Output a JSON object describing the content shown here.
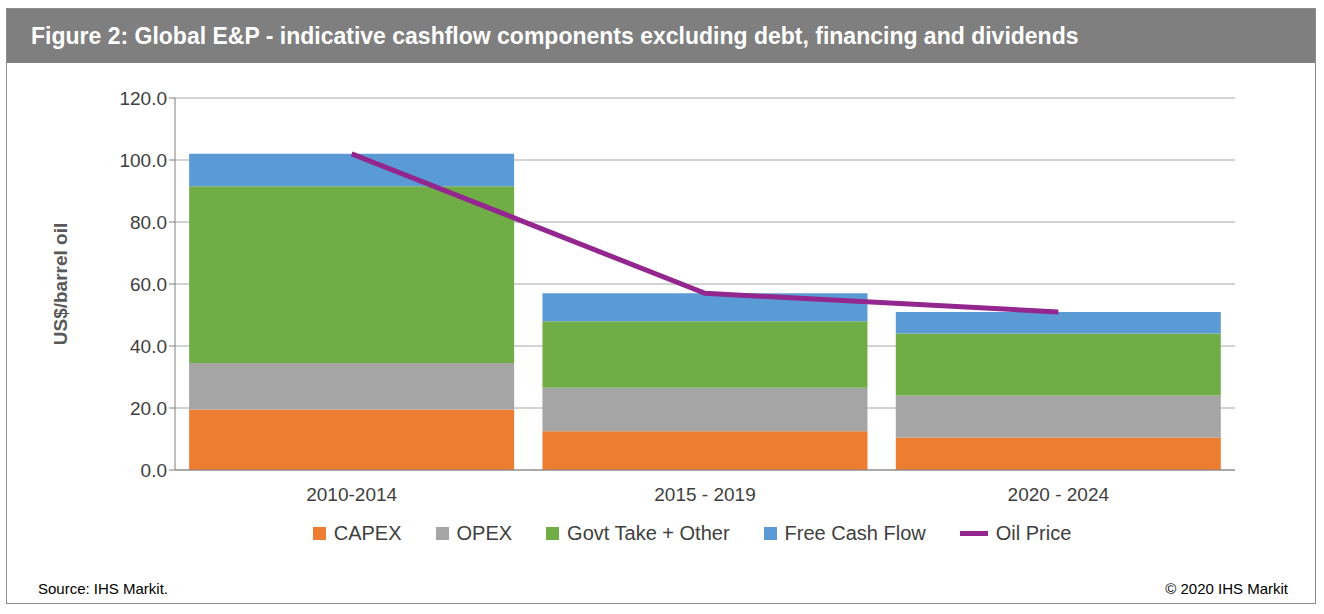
{
  "chart_data": {
    "type": "bar",
    "stacked": true,
    "title": "Figure 2: Global E&P - indicative cashflow components excluding debt, financing and dividends",
    "y_label": "US$/barrel oil",
    "source": "Source: IHS Markit.",
    "copyright": "© 2020 IHS Markit",
    "categories": [
      "2010-2014",
      "2015 - 2019",
      "2020 - 2024"
    ],
    "series": [
      {
        "name": "CAPEX",
        "color": "#ed7d31",
        "values": [
          19.5,
          12.5,
          10.5
        ]
      },
      {
        "name": "OPEX",
        "color": "#a5a5a5",
        "values": [
          15,
          14,
          13.5
        ]
      },
      {
        "name": "Govt Take + Other",
        "color": "#70ad47",
        "values": [
          57,
          21.5,
          20
        ]
      },
      {
        "name": "Free Cash Flow",
        "color": "#5b9bd5",
        "values": [
          10.5,
          9,
          7
        ]
      },
      {
        "name": "Oil Price",
        "type": "line",
        "color": "#93278f",
        "values": [
          102,
          57,
          51
        ]
      }
    ],
    "ylim": [
      0,
      120
    ],
    "yticks": [
      {
        "value": 0,
        "label": "0.0"
      },
      {
        "value": 20,
        "label": "20.0"
      },
      {
        "value": 40,
        "label": "40.0"
      },
      {
        "value": 60,
        "label": "60.0"
      },
      {
        "value": 80,
        "label": "80.0"
      },
      {
        "value": 100,
        "label": "100.0"
      },
      {
        "value": 120,
        "label": "120.0"
      }
    ],
    "grid": true,
    "legend": "bottom"
  }
}
